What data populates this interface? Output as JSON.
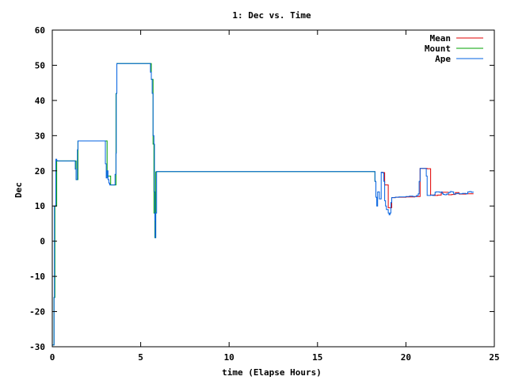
{
  "chart_data": {
    "type": "line",
    "title": "1: Dec vs. Time",
    "xlabel": "time (Elapse Hours)",
    "ylabel": "Dec",
    "xlim": [
      0,
      25
    ],
    "ylim": [
      -30,
      60
    ],
    "xticks": [
      0,
      5,
      10,
      15,
      20,
      25
    ],
    "yticks": [
      -30,
      -20,
      -10,
      0,
      10,
      20,
      30,
      40,
      50,
      60
    ],
    "grid": false,
    "legend_position": "top-right",
    "series": [
      {
        "name": "Mean",
        "color": "#e00000",
        "x": [
          18.6,
          18.7,
          18.8,
          19.0,
          19.2,
          19.4,
          20.0,
          20.5,
          20.8,
          21.0,
          21.2,
          21.4,
          21.6,
          21.8,
          22.0,
          22.2,
          22.4,
          22.6,
          22.8,
          23.0,
          23.4,
          23.8
        ],
        "y": [
          19.6,
          19.5,
          16.0,
          9.5,
          12.4,
          12.5,
          12.6,
          12.7,
          20.7,
          20.7,
          20.6,
          13.1,
          13.0,
          13.1,
          13.9,
          13.9,
          13.2,
          13.3,
          13.8,
          13.4,
          13.5,
          13.6
        ]
      },
      {
        "name": "Mount",
        "color": "#00a000",
        "x": [
          0.0,
          0.1,
          0.15,
          0.25,
          1.3,
          1.35,
          1.4,
          1.45,
          3.0,
          3.1,
          3.3,
          3.5,
          3.6,
          3.65,
          5.5,
          5.6,
          5.7,
          5.75,
          5.8,
          5.85,
          5.9,
          6.0,
          18.2,
          18.25,
          18.3
        ],
        "y": [
          -29.5,
          -16.0,
          10.0,
          22.8,
          22.8,
          17.5,
          17.5,
          28.5,
          28.5,
          18.5,
          16.0,
          16.0,
          42.0,
          50.5,
          50.5,
          46.0,
          27.6,
          8.0,
          1.0,
          19.7,
          19.8,
          19.8,
          19.8,
          17.0,
          12.5
        ]
      },
      {
        "name": "Ape",
        "color": "#0060e0",
        "x": [
          0.0,
          0.05,
          0.1,
          0.12,
          0.15,
          0.2,
          0.25,
          0.3,
          1.0,
          1.2,
          1.3,
          1.35,
          1.4,
          1.42,
          1.45,
          1.5,
          2.5,
          2.9,
          3.0,
          3.05,
          3.1,
          3.15,
          3.2,
          3.25,
          3.3,
          3.5,
          3.55,
          3.6,
          3.62,
          3.65,
          3.7,
          4.5,
          5.0,
          5.5,
          5.55,
          5.6,
          5.65,
          5.7,
          5.75,
          5.78,
          5.8,
          5.82,
          5.85,
          5.9,
          6.0,
          10.0,
          15.0,
          18.2,
          18.25,
          18.3,
          18.35,
          18.4,
          18.5,
          18.6,
          18.65,
          18.7,
          18.75,
          18.8,
          18.85,
          18.9,
          19.0,
          19.05,
          19.1,
          19.15,
          19.2,
          19.3,
          19.4,
          19.6,
          19.8,
          20.0,
          20.2,
          20.4,
          20.6,
          20.7,
          20.75,
          20.8,
          21.0,
          21.1,
          21.15,
          21.2,
          21.3,
          21.4,
          21.5,
          21.6,
          21.65,
          21.7,
          21.8,
          21.9,
          22.0,
          22.05,
          22.1,
          22.2,
          22.3,
          22.4,
          22.5,
          22.6,
          22.7,
          22.8,
          22.9,
          23.0,
          23.2,
          23.4,
          23.5,
          23.6,
          23.7,
          23.8
        ],
        "y": [
          -29.5,
          -29.5,
          -16.0,
          10.0,
          10.0,
          23.3,
          22.9,
          22.8,
          22.8,
          22.8,
          20.5,
          17.5,
          17.5,
          26.0,
          28.5,
          28.5,
          28.5,
          28.5,
          22.0,
          18.0,
          20.0,
          17.5,
          16.5,
          16.0,
          16.0,
          16.0,
          19.0,
          25.0,
          42.0,
          50.5,
          50.5,
          50.5,
          50.5,
          50.5,
          48.0,
          46.0,
          42.0,
          30.0,
          27.6,
          14.0,
          6.0,
          1.0,
          8.0,
          19.8,
          19.8,
          19.8,
          19.8,
          19.8,
          17.0,
          12.5,
          10.0,
          14.0,
          12.0,
          19.6,
          19.5,
          19.4,
          17.0,
          11.5,
          10.0,
          9.0,
          8.0,
          7.5,
          8.0,
          11.0,
          12.4,
          12.4,
          12.5,
          12.6,
          12.6,
          12.7,
          12.8,
          12.7,
          13.0,
          13.5,
          17.0,
          20.7,
          20.7,
          20.7,
          18.5,
          13.0,
          13.0,
          13.1,
          13.0,
          13.2,
          13.9,
          14.0,
          14.0,
          13.9,
          14.0,
          13.6,
          13.3,
          13.2,
          13.4,
          13.8,
          14.1,
          14.0,
          13.4,
          13.5,
          13.6,
          13.5,
          13.6,
          13.5,
          14.0,
          14.1,
          13.9,
          14.1
        ]
      }
    ]
  }
}
